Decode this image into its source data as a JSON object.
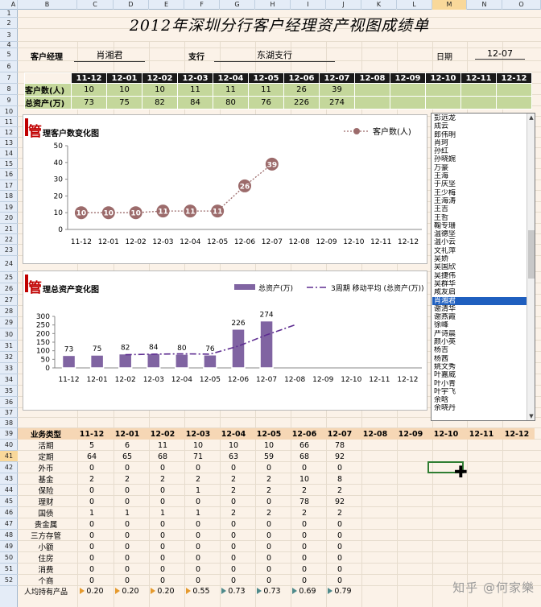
{
  "columns": [
    "A",
    "B",
    "C",
    "D",
    "E",
    "F",
    "G",
    "H",
    "I",
    "J",
    "K",
    "L",
    "M",
    "N",
    "O"
  ],
  "rows": [
    "1",
    "2",
    "3",
    "4",
    "5",
    "6",
    "7",
    "8",
    "9",
    "10",
    "11",
    "12",
    "13",
    "14",
    "15",
    "16",
    "17",
    "18",
    "19",
    "20",
    "21",
    "22",
    "23",
    "24",
    "25",
    "26",
    "27",
    "28",
    "29",
    "30",
    "31",
    "32",
    "33",
    "34",
    "35",
    "36",
    "37",
    "38",
    "39",
    "40",
    "41",
    "42",
    "43",
    "44",
    "45",
    "46",
    "47",
    "48",
    "49",
    "50",
    "51",
    "52"
  ],
  "selected_column": "M",
  "selected_row": "41",
  "title": "2012年深圳分行客户经理资产视图成绩单",
  "info": {
    "manager_label": "客户经理",
    "manager": "肖湘君",
    "branch_label": "支行",
    "branch": "东湖支行",
    "date_label": "日期",
    "date": "12-07"
  },
  "months": [
    "11-12",
    "12-01",
    "12-02",
    "12-03",
    "12-04",
    "12-05",
    "12-06",
    "12-07",
    "12-08",
    "12-09",
    "12-10",
    "12-11",
    "12-12"
  ],
  "summary": {
    "rows": [
      {
        "label": "客户数(人)",
        "values": [
          "10",
          "10",
          "10",
          "11",
          "11",
          "11",
          "26",
          "39",
          "",
          "",
          "",
          "",
          ""
        ]
      },
      {
        "label": "总资产(万)",
        "values": [
          "73",
          "75",
          "82",
          "84",
          "80",
          "76",
          "226",
          "274",
          "",
          "",
          "",
          "",
          ""
        ]
      }
    ]
  },
  "chart1": {
    "title_big": "管",
    "title_rest": "理客户数变化图",
    "legend": "客户数(人)",
    "color": "#9c6b6b"
  },
  "chart2": {
    "title_big": "管",
    "title_rest": "理总资产变化图",
    "legend_bar": "总资产(万)",
    "legend_line": "3周期 移动平均 (总资产(万))",
    "bar_color": "#8064a2",
    "line_color": "#5e2d91"
  },
  "chart_data": [
    {
      "type": "line",
      "x": [
        "11-12",
        "12-01",
        "12-02",
        "12-03",
        "12-04",
        "12-05",
        "12-06",
        "12-07",
        "12-08",
        "12-09",
        "12-10",
        "12-11",
        "12-12"
      ],
      "series": [
        {
          "name": "客户数(人)",
          "values": [
            10,
            10,
            10,
            11,
            11,
            11,
            26,
            39,
            null,
            null,
            null,
            null,
            null
          ]
        }
      ],
      "ylim": [
        0,
        50
      ],
      "yticks": [
        0,
        10,
        20,
        30,
        40,
        50
      ],
      "legend": "top-right",
      "title": "管理客户数变化图"
    },
    {
      "type": "bar",
      "categories": [
        "11-12",
        "12-01",
        "12-02",
        "12-03",
        "12-04",
        "12-05",
        "12-06",
        "12-07",
        "12-08",
        "12-09",
        "12-10",
        "12-11",
        "12-12"
      ],
      "series": [
        {
          "name": "总资产(万)",
          "values": [
            73,
            75,
            82,
            84,
            80,
            76,
            226,
            274,
            null,
            null,
            null,
            null,
            null
          ]
        },
        {
          "name": "3周期 移动平均 (总资产(万))",
          "type": "line",
          "values": [
            null,
            null,
            77,
            80,
            82,
            80,
            127,
            192,
            250,
            null,
            null,
            null,
            null
          ]
        }
      ],
      "ylim": [
        0,
        300
      ],
      "yticks": [
        0,
        50,
        100,
        150,
        200,
        250,
        300
      ],
      "legend": "top-right",
      "title": "管理总资产变化图"
    }
  ],
  "managers": [
    "彭远龙",
    "成云",
    "郎伟明",
    "肖珂",
    "孙红",
    "孙晓婉",
    "万豪",
    "王海",
    "于庆坚",
    "王少梅",
    "王海涛",
    "王吉",
    "王哲",
    "鞠专珊",
    "温德坚",
    "温小云",
    "文礼萍",
    "吴娇",
    "吴国欣",
    "吴捷伟",
    "吴群华",
    "咸友启",
    "肖湘君",
    "谢清华",
    "谢燕霞",
    "徐峰",
    "严诗晨",
    "颜小英",
    "杨吉",
    "杨茜",
    "姚文秀",
    "叶嘉威",
    "叶小青",
    "叶宇飞",
    "余晗",
    "余晓丹"
  ],
  "selected_manager": "肖湘君",
  "biz": {
    "header": "业务类型",
    "rows": [
      {
        "label": "活期",
        "values": [
          "5",
          "6",
          "11",
          "10",
          "10",
          "10",
          "66",
          "78"
        ]
      },
      {
        "label": "定期",
        "values": [
          "64",
          "65",
          "68",
          "71",
          "63",
          "59",
          "68",
          "92"
        ]
      },
      {
        "label": "外币",
        "values": [
          "0",
          "0",
          "0",
          "0",
          "0",
          "0",
          "0",
          "0"
        ]
      },
      {
        "label": "基金",
        "values": [
          "2",
          "2",
          "2",
          "2",
          "2",
          "2",
          "10",
          "8"
        ]
      },
      {
        "label": "保险",
        "values": [
          "0",
          "0",
          "0",
          "1",
          "2",
          "2",
          "2",
          "2"
        ]
      },
      {
        "label": "理财",
        "values": [
          "0",
          "0",
          "0",
          "0",
          "0",
          "0",
          "78",
          "92"
        ]
      },
      {
        "label": "国债",
        "values": [
          "1",
          "1",
          "1",
          "1",
          "2",
          "2",
          "2",
          "2"
        ]
      },
      {
        "label": "贵金属",
        "values": [
          "0",
          "0",
          "0",
          "0",
          "0",
          "0",
          "0",
          "0"
        ]
      },
      {
        "label": "三方存管",
        "values": [
          "0",
          "0",
          "0",
          "0",
          "0",
          "0",
          "0",
          "0"
        ]
      },
      {
        "label": "小额",
        "values": [
          "0",
          "0",
          "0",
          "0",
          "0",
          "0",
          "0",
          "0"
        ]
      },
      {
        "label": "住房",
        "values": [
          "0",
          "0",
          "0",
          "0",
          "0",
          "0",
          "0",
          "0"
        ]
      },
      {
        "label": "消费",
        "values": [
          "0",
          "0",
          "0",
          "0",
          "0",
          "0",
          "0",
          "0"
        ]
      },
      {
        "label": "个商",
        "values": [
          "0",
          "0",
          "0",
          "0",
          "0",
          "0",
          "0",
          "0"
        ]
      }
    ],
    "avg_label": "人均持有产品",
    "avg_values": [
      "0.20",
      "0.20",
      "0.20",
      "0.55",
      "0.73",
      "0.73",
      "0.69",
      "0.79"
    ],
    "avg_flags": [
      "o",
      "o",
      "o",
      "o",
      "g",
      "g",
      "g",
      "g"
    ]
  },
  "watermark": "知乎 @何家樂"
}
